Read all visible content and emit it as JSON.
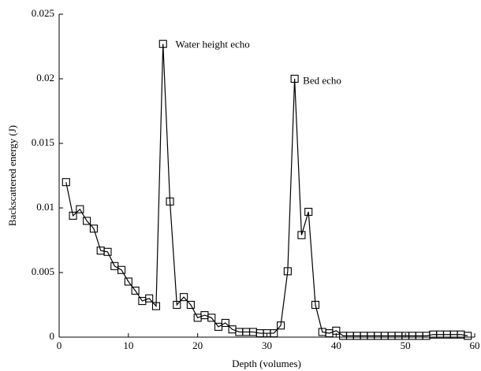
{
  "chart_data": {
    "type": "line",
    "x_label": "Depth (volumes)",
    "y_label": "Backscattered energy (J)",
    "x": [
      1,
      2,
      3,
      4,
      5,
      6,
      7,
      8,
      9,
      10,
      11,
      12,
      13,
      14,
      15,
      16,
      17,
      18,
      19,
      20,
      21,
      22,
      23,
      24,
      25,
      26,
      27,
      28,
      29,
      30,
      31,
      32,
      33,
      34,
      35,
      36,
      37,
      38,
      39,
      40,
      41,
      42,
      43,
      44,
      45,
      46,
      47,
      48,
      49,
      50,
      51,
      52,
      53,
      54,
      55,
      56,
      57,
      58,
      59
    ],
    "series": [
      {
        "color": "#000000",
        "marker": "square",
        "values": [
          0.012,
          0.0094,
          0.0099,
          0.009,
          0.0084,
          0.0067,
          0.0066,
          0.0055,
          0.0052,
          0.0043,
          0.0036,
          0.0028,
          0.003,
          0.0024,
          0.0227,
          0.0105,
          0.0025,
          0.0031,
          0.0025,
          0.0015,
          0.0017,
          0.0015,
          0.0008,
          0.0011,
          0.0006,
          0.0004,
          0.0004,
          0.0004,
          0.0003,
          0.0003,
          0.0003,
          0.0009,
          0.0051,
          0.02,
          0.0079,
          0.0097,
          0.0025,
          0.0004,
          0.0003,
          0.0005,
          0.0001,
          0.0001,
          0.0001,
          0.0001,
          0.0001,
          0.0001,
          0.0001,
          0.0001,
          0.0001,
          0.0001,
          0.0001,
          0.0001,
          0.0001,
          0.0002,
          0.0002,
          0.0002,
          0.0002,
          0.0002,
          0.0001
        ]
      }
    ],
    "annotations": [
      {
        "text": "Water height echo",
        "x": 16.8,
        "y": 0.0226,
        "color": "#8b1a1a"
      },
      {
        "text": "Bed echo",
        "x": 35.2,
        "y": 0.0198,
        "color": "#8b1a1a"
      }
    ],
    "xlim": [
      0,
      60
    ],
    "xticks": [
      0,
      10,
      20,
      30,
      40,
      50,
      60
    ],
    "ylim": [
      0,
      0.025
    ],
    "yticks": [
      0,
      0.005,
      0.01,
      0.015,
      0.02,
      0.025
    ]
  }
}
